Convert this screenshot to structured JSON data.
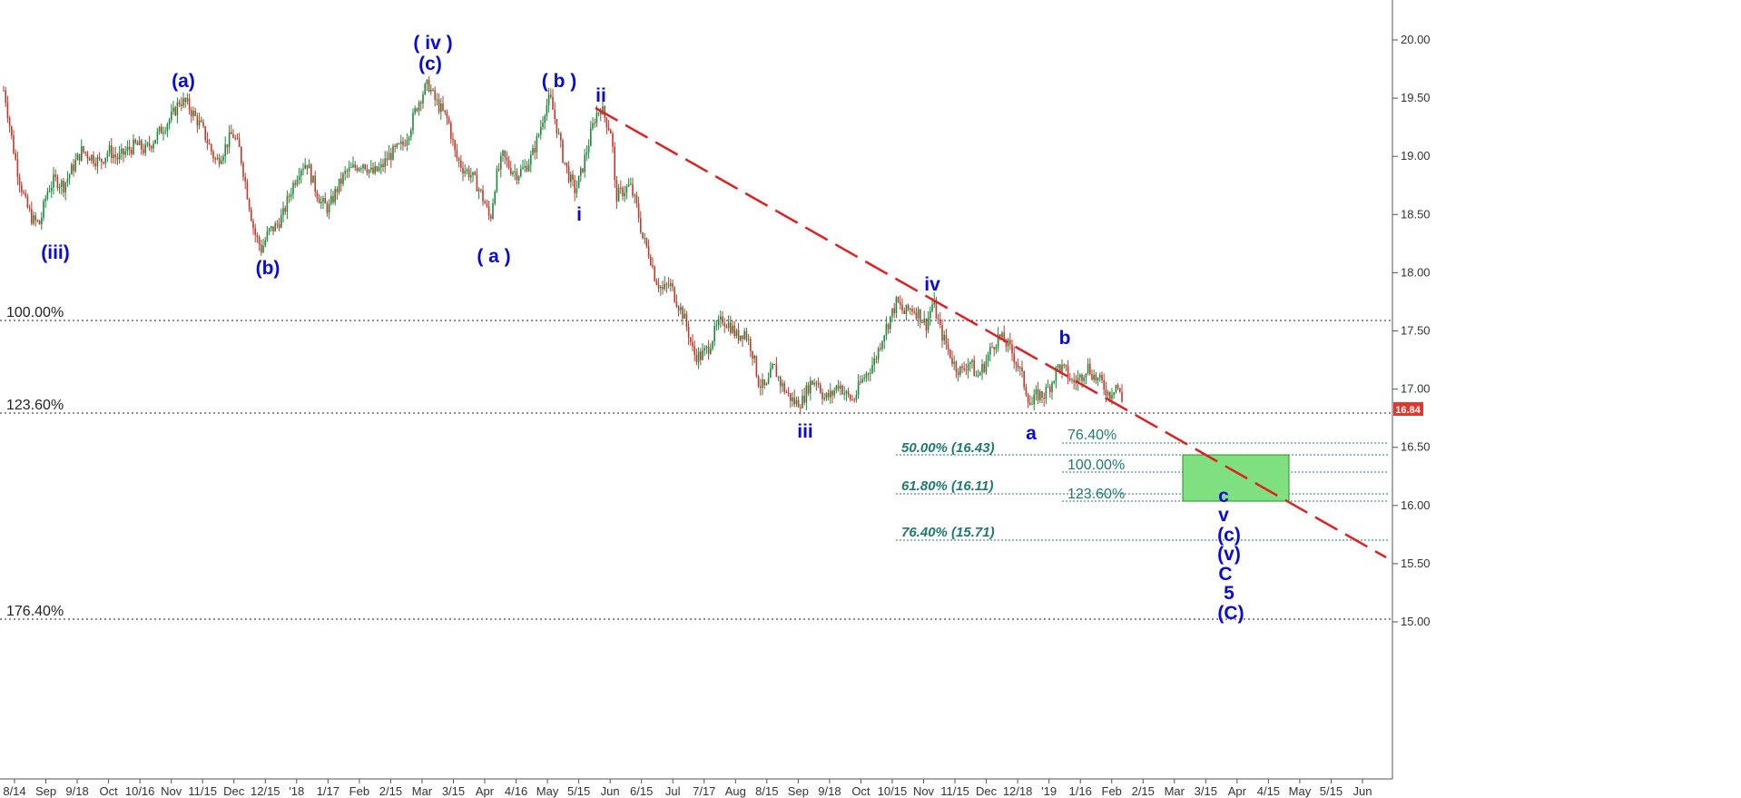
{
  "chart_data": {
    "type": "candlestick",
    "ylim": [
      14.93,
      20.3
    ],
    "y_ticks": [
      "20.00",
      "19.50",
      "19.00",
      "18.50",
      "18.00",
      "17.50",
      "17.00",
      "16.50",
      "16.00",
      "15.50",
      "15.00"
    ],
    "x_ticks": [
      "8/14",
      "Sep",
      "9/18",
      "Oct",
      "10/16",
      "Nov",
      "11/15",
      "Dec",
      "12/15",
      "'18",
      "1/17",
      "Feb",
      "2/15",
      "Mar",
      "3/15",
      "Apr",
      "4/16",
      "May",
      "5/15",
      "Jun",
      "6/15",
      "Jul",
      "7/17",
      "Aug",
      "8/15",
      "Sep",
      "9/18",
      "Oct",
      "10/15",
      "Nov",
      "11/15",
      "Dec",
      "12/18",
      "'19",
      "1/16",
      "Feb",
      "2/15",
      "Mar",
      "3/15",
      "Apr",
      "4/15",
      "May",
      "5/15",
      "Jun"
    ],
    "last_price": "16.84",
    "price_path": [
      [
        0,
        19.7
      ],
      [
        6,
        19.5
      ],
      [
        14,
        19.1
      ],
      [
        20,
        18.85
      ],
      [
        28,
        18.6
      ],
      [
        36,
        18.45
      ],
      [
        44,
        18.42
      ],
      [
        52,
        18.7
      ],
      [
        60,
        18.8
      ],
      [
        70,
        18.75
      ],
      [
        80,
        18.9
      ],
      [
        90,
        19.05
      ],
      [
        100,
        19.0
      ],
      [
        110,
        18.95
      ],
      [
        120,
        19.05
      ],
      [
        130,
        18.98
      ],
      [
        140,
        19.05
      ],
      [
        150,
        19.1
      ],
      [
        160,
        19.05
      ],
      [
        170,
        19.15
      ],
      [
        180,
        19.25
      ],
      [
        190,
        19.35
      ],
      [
        198,
        19.48
      ],
      [
        206,
        19.45
      ],
      [
        214,
        19.35
      ],
      [
        222,
        19.25
      ],
      [
        230,
        19.1
      ],
      [
        238,
        18.95
      ],
      [
        246,
        19.05
      ],
      [
        256,
        19.2
      ],
      [
        264,
        19.05
      ],
      [
        272,
        18.7
      ],
      [
        280,
        18.35
      ],
      [
        288,
        18.2
      ],
      [
        296,
        18.35
      ],
      [
        304,
        18.4
      ],
      [
        312,
        18.5
      ],
      [
        320,
        18.7
      ],
      [
        330,
        18.9
      ],
      [
        338,
        18.95
      ],
      [
        346,
        18.75
      ],
      [
        354,
        18.6
      ],
      [
        362,
        18.55
      ],
      [
        370,
        18.7
      ],
      [
        380,
        18.85
      ],
      [
        390,
        18.9
      ],
      [
        400,
        18.95
      ],
      [
        410,
        18.85
      ],
      [
        420,
        18.9
      ],
      [
        428,
        19.0
      ],
      [
        436,
        19.05
      ],
      [
        444,
        19.1
      ],
      [
        452,
        19.25
      ],
      [
        460,
        19.45
      ],
      [
        466,
        19.55
      ],
      [
        472,
        19.62
      ],
      [
        478,
        19.5
      ],
      [
        486,
        19.4
      ],
      [
        494,
        19.3
      ],
      [
        502,
        19.0
      ],
      [
        510,
        18.9
      ],
      [
        518,
        18.85
      ],
      [
        526,
        18.75
      ],
      [
        534,
        18.6
      ],
      [
        540,
        18.45
      ],
      [
        546,
        18.8
      ],
      [
        554,
        19.0
      ],
      [
        562,
        18.9
      ],
      [
        570,
        18.85
      ],
      [
        578,
        18.9
      ],
      [
        586,
        19.0
      ],
      [
        594,
        19.2
      ],
      [
        600,
        19.4
      ],
      [
        606,
        19.5
      ],
      [
        612,
        19.3
      ],
      [
        620,
        19.0
      ],
      [
        628,
        18.8
      ],
      [
        634,
        18.7
      ],
      [
        640,
        18.85
      ],
      [
        648,
        19.1
      ],
      [
        656,
        19.35
      ],
      [
        662,
        19.42
      ],
      [
        668,
        19.3
      ],
      [
        674,
        19.2
      ],
      [
        678,
        18.65
      ],
      [
        686,
        18.7
      ],
      [
        694,
        18.75
      ],
      [
        702,
        18.55
      ],
      [
        708,
        18.3
      ],
      [
        716,
        18.15
      ],
      [
        722,
        17.95
      ],
      [
        730,
        17.85
      ],
      [
        738,
        17.9
      ],
      [
        746,
        17.75
      ],
      [
        752,
        17.65
      ],
      [
        758,
        17.5
      ],
      [
        764,
        17.3
      ],
      [
        772,
        17.28
      ],
      [
        780,
        17.35
      ],
      [
        788,
        17.5
      ],
      [
        796,
        17.6
      ],
      [
        804,
        17.55
      ],
      [
        812,
        17.45
      ],
      [
        820,
        17.5
      ],
      [
        828,
        17.35
      ],
      [
        836,
        17.05
      ],
      [
        844,
        17.0
      ],
      [
        852,
        17.2
      ],
      [
        860,
        17.05
      ],
      [
        868,
        16.95
      ],
      [
        876,
        16.88
      ],
      [
        884,
        16.9
      ],
      [
        892,
        17.05
      ],
      [
        900,
        17.08
      ],
      [
        908,
        16.92
      ],
      [
        916,
        16.95
      ],
      [
        924,
        17.05
      ],
      [
        932,
        16.95
      ],
      [
        940,
        16.9
      ],
      [
        948,
        17.05
      ],
      [
        956,
        17.15
      ],
      [
        964,
        17.25
      ],
      [
        972,
        17.45
      ],
      [
        980,
        17.6
      ],
      [
        988,
        17.75
      ],
      [
        996,
        17.65
      ],
      [
        1004,
        17.7
      ],
      [
        1012,
        17.65
      ],
      [
        1020,
        17.55
      ],
      [
        1028,
        17.75
      ],
      [
        1036,
        17.5
      ],
      [
        1044,
        17.35
      ],
      [
        1052,
        17.2
      ],
      [
        1060,
        17.15
      ],
      [
        1068,
        17.25
      ],
      [
        1076,
        17.1
      ],
      [
        1084,
        17.2
      ],
      [
        1092,
        17.35
      ],
      [
        1100,
        17.45
      ],
      [
        1108,
        17.4
      ],
      [
        1116,
        17.3
      ],
      [
        1124,
        17.15
      ],
      [
        1130,
        17.0
      ],
      [
        1136,
        16.85
      ],
      [
        1142,
        16.95
      ],
      [
        1150,
        16.95
      ],
      [
        1158,
        17.05
      ],
      [
        1166,
        17.2
      ],
      [
        1174,
        17.15
      ],
      [
        1182,
        17.05
      ],
      [
        1190,
        17.1
      ],
      [
        1198,
        17.2
      ],
      [
        1206,
        17.1
      ],
      [
        1214,
        17.05
      ],
      [
        1222,
        16.95
      ],
      [
        1230,
        17.05
      ],
      [
        1238,
        16.84
      ]
    ]
  },
  "labels": {
    "fib_retrace": [
      "100.00%",
      "123.60%",
      "176.40%"
    ],
    "fib_projection": [
      "50.00% (16.43)",
      "61.80% (16.11)",
      "76.40% (15.71)"
    ],
    "fib_extension": [
      "76.40%",
      "100.00%",
      "123.60%"
    ],
    "waves": {
      "w_iii_paren": "(iii)",
      "w_a_paren": "(a)",
      "w_b_paren": "(b)",
      "w_iv_big": "( iv )",
      "w_c_paren": "(c)",
      "w_a_spaced": "( a )",
      "w_b_spaced": "( b )",
      "w_ii": "ii",
      "w_i": "i",
      "w_iv": "iv",
      "w_iii": "iii",
      "w_a": "a",
      "w_b": "b",
      "proj_stack": [
        "c",
        "v",
        "(c)",
        "(v)",
        "C",
        "5",
        "(C)"
      ]
    }
  },
  "colors": {
    "up_candle": "#1a8a3a",
    "down_candle": "#c0392b",
    "trendline": "#e02020",
    "target_box": "#7ee07e",
    "wave_label": "#0a0ad8",
    "fib_teal": "#1f7a73",
    "price_badge": "#e0382e"
  }
}
